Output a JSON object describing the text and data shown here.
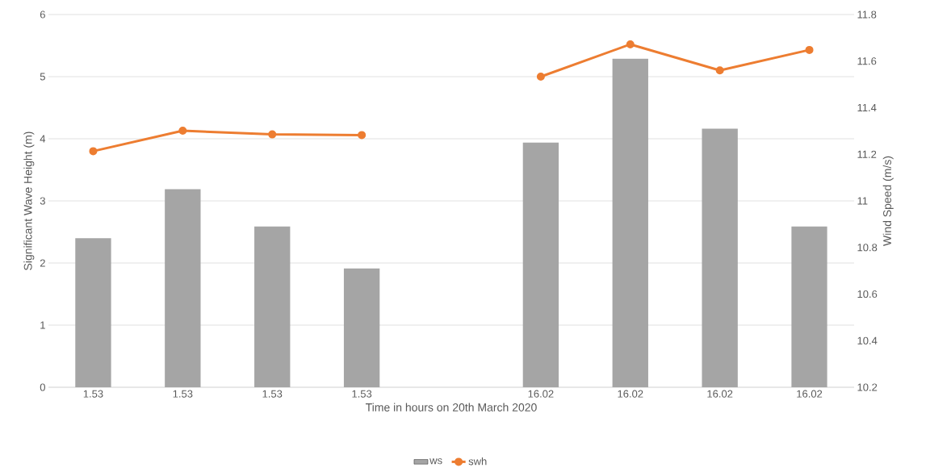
{
  "chart_data": {
    "type": "bar",
    "xlabel": "Time in hours on 20th March 2020",
    "ylabel": "Significant Wave Height (m)",
    "y2label": "Wind Speed (m/s)",
    "categories": [
      "1.53",
      "1.53",
      "1.53",
      "1.53",
      null,
      "16.02",
      "16.02",
      "16.02",
      "16.02"
    ],
    "ylim": [
      0,
      6
    ],
    "yticks": [
      0,
      1,
      2,
      3,
      4,
      5,
      6
    ],
    "y2lim": [
      10.2,
      11.8
    ],
    "y2ticks": [
      10.2,
      10.4,
      10.6,
      10.8,
      11,
      11.2,
      11.4,
      11.6,
      11.8
    ],
    "grid": "y",
    "legend": "bottom",
    "series": [
      {
        "name": "ws",
        "axis": "y2",
        "color": "#a5a5a5",
        "values": [
          10.84,
          11.05,
          10.89,
          10.71,
          null,
          11.25,
          11.61,
          11.31,
          10.89
        ]
      },
      {
        "name": "swh",
        "type": "line",
        "color": "#ed7d31",
        "marker": "circle",
        "values": [
          3.8,
          4.13,
          4.07,
          4.06,
          null,
          5.0,
          5.52,
          5.1,
          5.43
        ]
      }
    ]
  }
}
